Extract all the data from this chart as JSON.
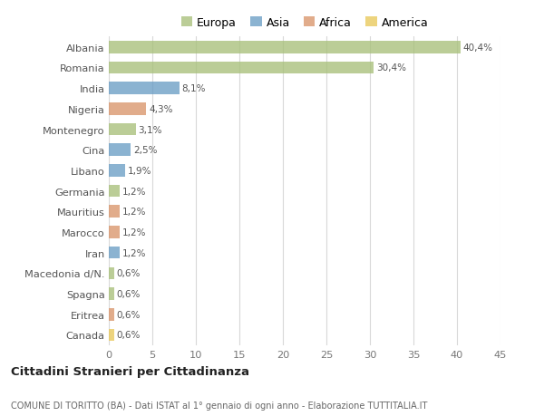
{
  "categories": [
    "Albania",
    "Romania",
    "India",
    "Nigeria",
    "Montenegro",
    "Cina",
    "Libano",
    "Germania",
    "Mauritius",
    "Marocco",
    "Iran",
    "Macedonia d/N.",
    "Spagna",
    "Eritrea",
    "Canada"
  ],
  "values": [
    40.4,
    30.4,
    8.1,
    4.3,
    3.1,
    2.5,
    1.9,
    1.2,
    1.2,
    1.2,
    1.2,
    0.6,
    0.6,
    0.6,
    0.6
  ],
  "labels": [
    "40,4%",
    "30,4%",
    "8,1%",
    "4,3%",
    "3,1%",
    "2,5%",
    "1,9%",
    "1,2%",
    "1,2%",
    "1,2%",
    "1,2%",
    "0,6%",
    "0,6%",
    "0,6%",
    "0,6%"
  ],
  "colors": [
    "#a8c07a",
    "#a8c07a",
    "#6a9ec5",
    "#d9956a",
    "#a8c07a",
    "#6a9ec5",
    "#6a9ec5",
    "#a8c07a",
    "#d9956a",
    "#d9956a",
    "#6a9ec5",
    "#a8c07a",
    "#a8c07a",
    "#d9956a",
    "#e8c85a"
  ],
  "legend_labels": [
    "Europa",
    "Asia",
    "Africa",
    "America"
  ],
  "legend_colors": [
    "#a8c07a",
    "#6a9ec5",
    "#d9956a",
    "#e8c85a"
  ],
  "title": "Cittadini Stranieri per Cittadinanza",
  "subtitle": "COMUNE DI TORITTO (BA) - Dati ISTAT al 1° gennaio di ogni anno - Elaborazione TUTTITALIA.IT",
  "xlim": [
    0,
    45
  ],
  "xticks": [
    0,
    5,
    10,
    15,
    20,
    25,
    30,
    35,
    40,
    45
  ],
  "bg_color": "#ffffff",
  "grid_color": "#d8d8d8",
  "bar_alpha": 0.78,
  "bar_height": 0.6
}
